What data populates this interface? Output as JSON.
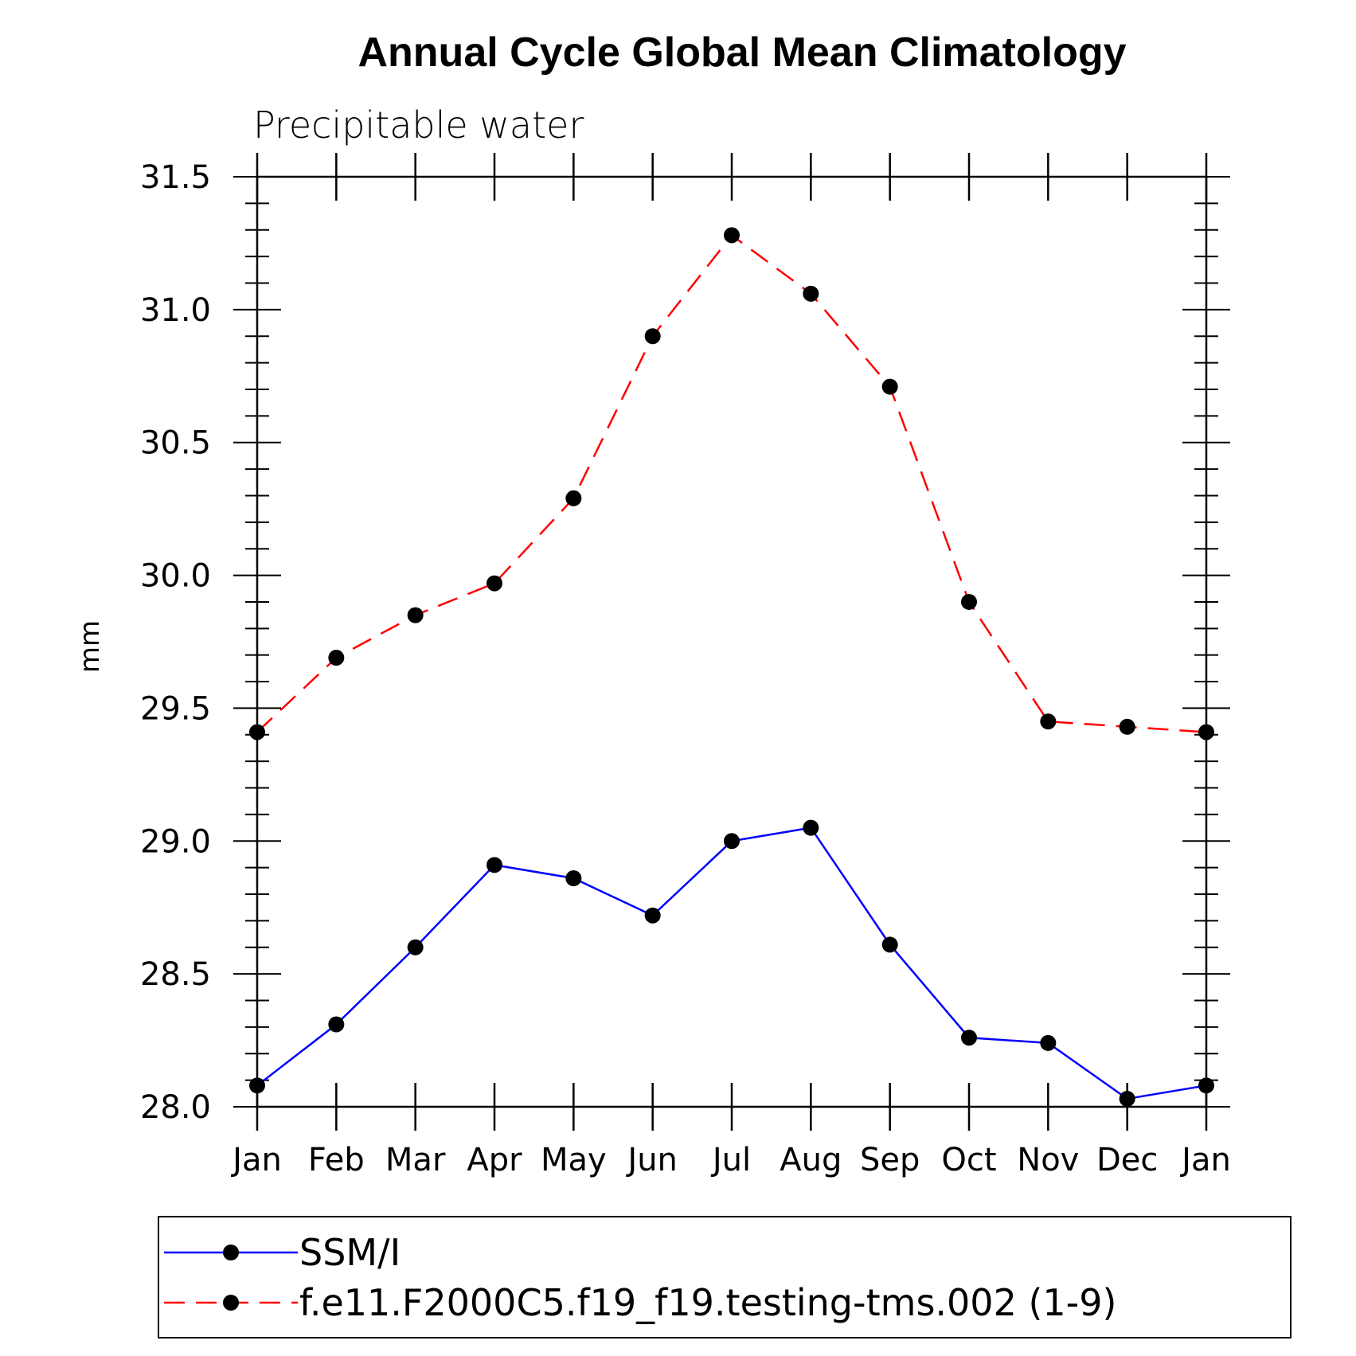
{
  "chart_data": {
    "type": "line",
    "title": "Annual Cycle Global Mean Climatology",
    "subtitle": "Precipitable water",
    "xlabel": "",
    "ylabel": "mm",
    "categories": [
      "Jan",
      "Feb",
      "Mar",
      "Apr",
      "May",
      "Jun",
      "Jul",
      "Aug",
      "Sep",
      "Oct",
      "Nov",
      "Dec",
      "Jan"
    ],
    "ylim": [
      28.0,
      31.5
    ],
    "yticks": [
      "28.0",
      "28.5",
      "29.0",
      "29.5",
      "30.0",
      "30.5",
      "31.0",
      "31.5"
    ],
    "grid": false,
    "legend_position": "bottom",
    "series": [
      {
        "name": "SSM/I",
        "color": "#0000ff",
        "dash": "solid",
        "marker": "filled-circle",
        "values": [
          28.08,
          28.31,
          28.6,
          28.91,
          28.86,
          28.72,
          29.0,
          29.05,
          28.61,
          28.26,
          28.24,
          28.03,
          28.08
        ]
      },
      {
        "name": "f.e11.F2000C5.f19_f19.testing-tms.002 (1-9)",
        "color": "#ff0000",
        "dash": "dashed",
        "marker": "filled-circle",
        "values": [
          29.41,
          29.69,
          29.85,
          29.97,
          30.29,
          30.9,
          31.28,
          31.06,
          30.71,
          29.9,
          29.45,
          29.43,
          29.41
        ]
      }
    ]
  }
}
